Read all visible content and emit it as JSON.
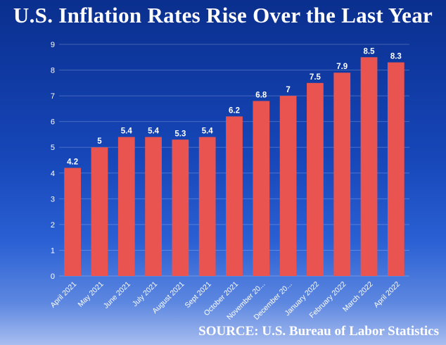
{
  "chart_data": {
    "type": "bar",
    "title": "U.S. Inflation Rates Rise Over the Last Year",
    "categories": [
      "April 2021",
      "May 2021",
      "June 2021",
      "July 2021",
      "August 2021",
      "Sept 2021",
      "October 2021",
      "November 20...",
      "December 20...",
      "January 2022",
      "February 2022",
      "March 2022",
      "April 2022"
    ],
    "values": [
      4.2,
      5,
      5.4,
      5.4,
      5.3,
      5.4,
      6.2,
      6.8,
      7,
      7.5,
      7.9,
      8.5,
      8.3
    ],
    "value_labels": [
      "4.2",
      "5",
      "5.4",
      "5.4",
      "5.3",
      "5.4",
      "6.2",
      "6.8",
      "7",
      "7.5",
      "7.9",
      "8.5",
      "8.3"
    ],
    "y_ticks": [
      0,
      1,
      2,
      3,
      4,
      5,
      6,
      7,
      8,
      9
    ],
    "ylim": [
      0,
      9
    ],
    "xlabel": "",
    "ylabel": "",
    "grid": true,
    "bar_color": "#e95450",
    "source": "SOURCE: U.S. Bureau of Labor Statistics"
  }
}
